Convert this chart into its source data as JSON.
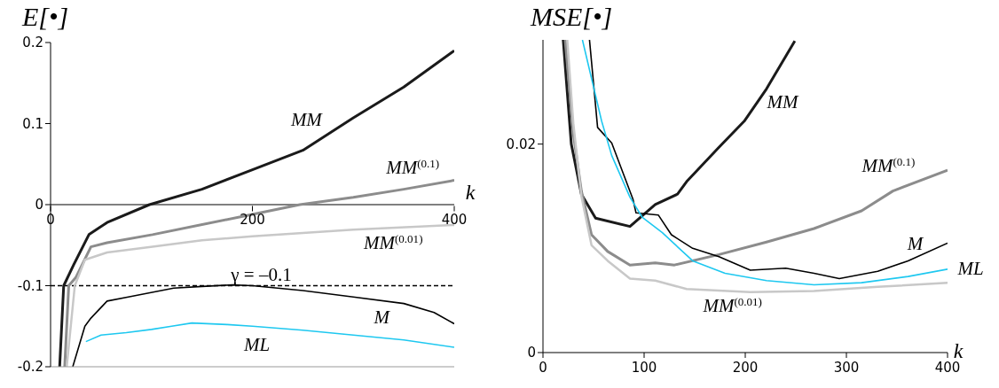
{
  "chart_data": [
    {
      "type": "line",
      "title": "E[•]",
      "xlabel": "k",
      "xlim": [
        0,
        400
      ],
      "xticks": [
        0,
        200,
        400
      ],
      "ylim": [
        -0.2,
        0.2
      ],
      "yticks": [
        -0.2,
        -0.1,
        0,
        0.1,
        0.2
      ],
      "marker": "none",
      "ref_lines": [
        {
          "axis": "y",
          "value": -0.1,
          "label": "γ = –0.1",
          "color": "#000000",
          "line_style": "dashed"
        }
      ],
      "series": [
        {
          "name": "MM",
          "color": "#1a1a1a",
          "x": [
            9,
            13,
            23,
            38,
            56,
            98,
            150,
            200,
            250,
            300,
            350,
            400
          ],
          "values": [
            -0.2,
            -0.1,
            -0.074,
            -0.037,
            -0.022,
            0,
            0.019,
            0.043,
            0.067,
            0.107,
            0.145,
            0.19
          ]
        },
        {
          "name": "MM$^{(0.1)}$",
          "color": "#8c8c8c",
          "x": [
            14,
            18,
            25,
            40,
            56,
            101,
            200,
            247,
            300,
            350,
            400
          ],
          "values": [
            -0.2,
            -0.1,
            -0.09,
            -0.052,
            -0.047,
            -0.037,
            -0.012,
            0,
            0.009,
            0.019,
            0.03
          ]
        },
        {
          "name": "MM$^{(0.01)}$",
          "color": "#c8c8c8",
          "x": [
            16,
            24,
            34,
            56,
            101,
            150,
            200,
            300,
            400
          ],
          "values": [
            -0.2,
            -0.1,
            -0.068,
            -0.059,
            -0.052,
            -0.044,
            -0.039,
            -0.031,
            -0.025
          ]
        },
        {
          "name": "M",
          "color": "#000000",
          "x": [
            22,
            34,
            40,
            56,
            77,
            122,
            150,
            180,
            200,
            250,
            300,
            350,
            380,
            400
          ],
          "values": [
            -0.2,
            -0.15,
            -0.14,
            -0.119,
            -0.114,
            -0.103,
            -0.101,
            -0.099,
            -0.1,
            -0.106,
            -0.114,
            -0.122,
            -0.133,
            -0.147
          ]
        },
        {
          "name": "ML",
          "color": "#1ec8f0",
          "x": [
            35,
            50,
            75,
            100,
            120,
            140,
            175,
            200,
            250,
            300,
            350,
            400
          ],
          "values": [
            -0.169,
            -0.161,
            -0.158,
            -0.154,
            -0.15,
            -0.146,
            -0.148,
            -0.15,
            -0.155,
            -0.161,
            -0.167,
            -0.176
          ]
        }
      ]
    },
    {
      "type": "line",
      "title": "MSE[•]",
      "xlabel": "k",
      "xlim": [
        0,
        400
      ],
      "xticks": [
        0,
        100,
        200,
        300,
        400
      ],
      "ylim": [
        0,
        0.03
      ],
      "yticks": [
        0,
        0.02
      ],
      "marker": "none",
      "series": [
        {
          "name": "MM",
          "color": "#1a1a1a",
          "x": [
            20,
            28,
            38,
            52,
            86,
            111,
            133,
            142,
            174,
            199,
            221,
            249
          ],
          "values": [
            0.03,
            0.02,
            0.0152,
            0.0129,
            0.0121,
            0.0142,
            0.0152,
            0.0164,
            0.0197,
            0.0222,
            0.0253,
            0.0299
          ]
        },
        {
          "name": "MM$^{(0.1)}$",
          "color": "#8c8c8c",
          "x": [
            22,
            30,
            38,
            48,
            64,
            86,
            111,
            130,
            174,
            221,
            268,
            315,
            346,
            400
          ],
          "values": [
            0.03,
            0.021,
            0.0155,
            0.0113,
            0.0097,
            0.0084,
            0.0086,
            0.0084,
            0.0094,
            0.0106,
            0.0119,
            0.0136,
            0.0155,
            0.0175
          ]
        },
        {
          "name": "MM$^{(0.01)}$",
          "color": "#c8c8c8",
          "x": [
            24,
            30,
            38,
            48,
            64,
            86,
            111,
            142,
            205,
            268,
            331,
            400
          ],
          "values": [
            0.03,
            0.022,
            0.015,
            0.0103,
            0.0088,
            0.0071,
            0.0069,
            0.0061,
            0.0058,
            0.0059,
            0.0063,
            0.0067
          ]
        },
        {
          "name": "M",
          "color": "#000000",
          "x": [
            46,
            54,
            68,
            89,
            92,
            114,
            127,
            148,
            174,
            205,
            240,
            268,
            293,
            331,
            361,
            400
          ],
          "values": [
            0.03,
            0.0216,
            0.0201,
            0.0147,
            0.0134,
            0.0132,
            0.0113,
            0.01,
            0.0092,
            0.0079,
            0.0081,
            0.0076,
            0.0071,
            0.0078,
            0.0088,
            0.0105
          ]
        },
        {
          "name": "ML",
          "color": "#1ec8f0",
          "x": [
            39,
            58,
            68,
            86,
            98,
            118,
            148,
            180,
            221,
            268,
            315,
            361,
            400
          ],
          "values": [
            0.03,
            0.0222,
            0.0189,
            0.0149,
            0.013,
            0.0115,
            0.0088,
            0.0076,
            0.0069,
            0.0065,
            0.0067,
            0.0073,
            0.008
          ]
        }
      ]
    }
  ]
}
